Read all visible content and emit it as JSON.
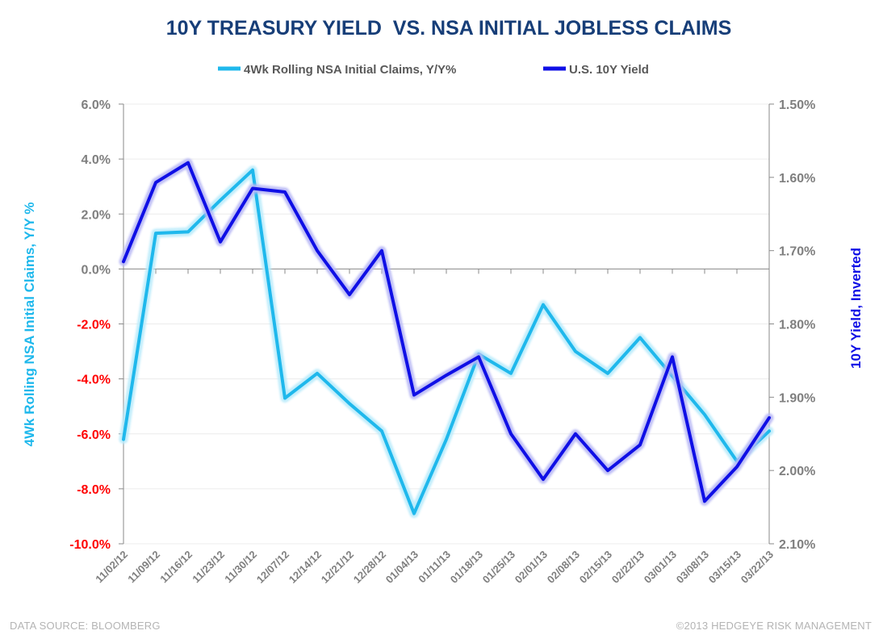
{
  "chart_data": {
    "type": "line",
    "title": "10Y TREASURY YIELD  VS. NSA INITIAL JOBLESS CLAIMS",
    "categories": [
      "11/02/12",
      "11/09/12",
      "11/16/12",
      "11/23/12",
      "11/30/12",
      "12/07/12",
      "12/14/12",
      "12/21/12",
      "12/28/12",
      "01/04/13",
      "01/11/13",
      "01/18/13",
      "01/25/13",
      "02/01/13",
      "02/08/13",
      "02/15/13",
      "02/22/13",
      "03/01/13",
      "03/08/13",
      "03/15/13",
      "03/22/13"
    ],
    "left_axis": {
      "label": "4Wk Rolling NSA Initial Claims, Y/Y %",
      "ylim": [
        -10,
        6
      ],
      "ticks": [
        6,
        4,
        2,
        0,
        -2,
        -4,
        -6,
        -8,
        -10
      ],
      "tick_labels": [
        "6.0%",
        "4.0%",
        "2.0%",
        "0.0%",
        "-2.0%",
        "-4.0%",
        "-6.0%",
        "-8.0%",
        "-10.0%"
      ]
    },
    "right_axis": {
      "label": "10Y Yield, Inverted",
      "inverted": true,
      "ylim": [
        1.5,
        2.1
      ],
      "ticks": [
        1.5,
        1.6,
        1.7,
        1.8,
        1.9,
        2.0,
        2.1
      ],
      "tick_labels": [
        "1.50%",
        "1.60%",
        "1.70%",
        "1.80%",
        "1.90%",
        "2.00%",
        "2.10%"
      ]
    },
    "series": [
      {
        "name": "4Wk Rolling NSA Initial Claims, Y/Y%",
        "axis": "left",
        "color": "#1fb8ec",
        "values": [
          -6.2,
          1.3,
          1.35,
          2.5,
          3.6,
          -4.7,
          -3.8,
          -4.9,
          -5.9,
          -8.9,
          -6.2,
          -3.1,
          -3.8,
          -1.3,
          -3.0,
          -3.8,
          -2.5,
          -3.9,
          -5.3,
          -7.0,
          -5.9
        ]
      },
      {
        "name": "U.S. 10Y Yield",
        "axis": "right",
        "color": "#0f0fe6",
        "values": [
          1.715,
          1.607,
          1.58,
          1.688,
          1.615,
          1.62,
          1.7,
          1.76,
          1.7,
          1.897,
          1.87,
          1.845,
          1.95,
          2.012,
          1.95,
          2.0,
          1.965,
          1.845,
          2.042,
          1.995,
          1.928
        ]
      }
    ],
    "source": "DATA SOURCE: BLOOMBERG",
    "copyright": "©2013 HEDGEYE RISK MANAGEMENT"
  },
  "colors": {
    "title": "#173e78",
    "claims": "#1fb8ec",
    "yield": "#0f0fe6",
    "negative_tick": "#ff0000",
    "tick": "#7f7f7f",
    "grid": "#ececec",
    "footer": "#b4b4b4"
  }
}
